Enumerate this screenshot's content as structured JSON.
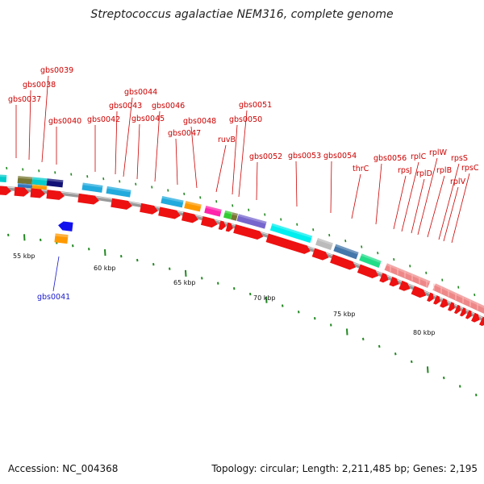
{
  "title": "Streptococcus agalactiae NEM316, complete genome",
  "footer": {
    "accession": "Accession: NC_004368",
    "summary": "Topology: circular; Length: 2,211,485 bp; Genes: 2,195"
  },
  "colors": {
    "cds": "#ee1111",
    "label": "#cc0000",
    "label_reverse": "#1a1acc",
    "tick": "#228822",
    "backbone": "#999999"
  },
  "scale_labels": [
    "55 kbp",
    "60 kbp",
    "65 kbp",
    "70 kbp",
    "75 kbp",
    "80 kbp"
  ],
  "gene_labels": [
    "gbs0037",
    "gbs0038",
    "gbs0039",
    "gbs0040",
    "gbs0042",
    "gbs0043",
    "gbs0044",
    "gbs0045",
    "gbs0046",
    "gbs0047",
    "gbs0048",
    "ruvB",
    "gbs0050",
    "gbs0051",
    "gbs0052",
    "gbs0053",
    "gbs0054",
    "thrC",
    "gbs0056",
    "rpsJ",
    "rplC",
    "rplD",
    "rplW",
    "rplB",
    "rpsS",
    "rplV",
    "rpsC"
  ],
  "reverse_labels": [
    "gbs0041"
  ],
  "cog_colors": [
    "#00cccc",
    "#777733",
    "#3377bb",
    "#ff9900",
    "#111177",
    "#22aadd",
    "#ff22aa",
    "#33cc33",
    "#7766cc",
    "#00eeee",
    "#bbbbbb",
    "#4477aa",
    "#22dd88",
    "#ee8888",
    "#0000ee"
  ]
}
